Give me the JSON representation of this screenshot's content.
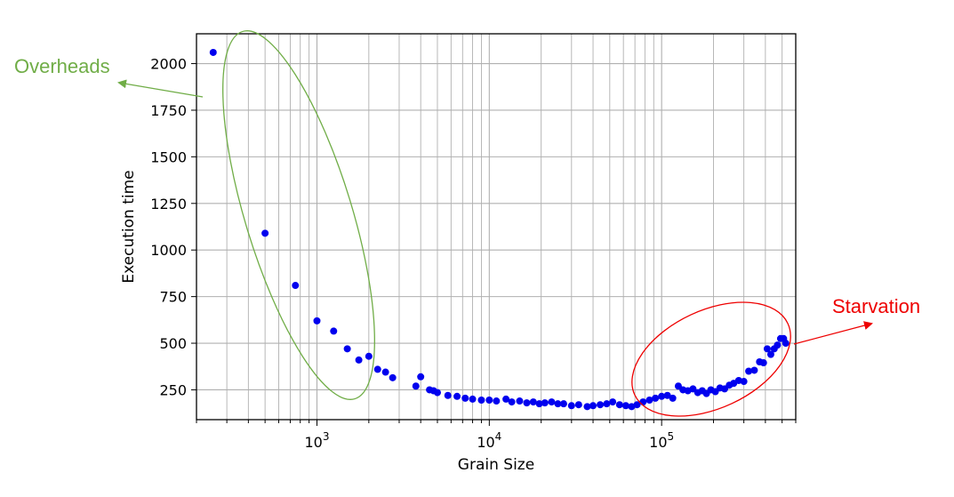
{
  "chart_data": {
    "type": "scatter",
    "xlabel": "Grain Size",
    "ylabel": "Execution time",
    "xscale": "log",
    "xlim": [
      200,
      600000
    ],
    "ylim": [
      90,
      2160
    ],
    "grid": true,
    "x_ticks": [
      {
        "base": "10",
        "exp": "3",
        "value": 1000
      },
      {
        "base": "10",
        "exp": "4",
        "value": 10000
      },
      {
        "base": "10",
        "exp": "5",
        "value": 100000
      }
    ],
    "y_ticks": [
      "250",
      "500",
      "750",
      "1000",
      "1250",
      "1500",
      "1750",
      "2000"
    ],
    "point_color": "#0000ee",
    "series": [
      {
        "points": [
          [
            250,
            2060
          ],
          [
            500,
            1090
          ],
          [
            750,
            810
          ],
          [
            1000,
            620
          ],
          [
            1250,
            565
          ],
          [
            1500,
            470
          ],
          [
            1750,
            410
          ],
          [
            2000,
            430
          ],
          [
            2250,
            360
          ],
          [
            2500,
            345
          ],
          [
            2750,
            315
          ],
          [
            3750,
            270
          ],
          [
            4000,
            320
          ],
          [
            4500,
            250
          ],
          [
            4750,
            245
          ],
          [
            5000,
            235
          ],
          [
            5750,
            220
          ],
          [
            6500,
            215
          ],
          [
            7250,
            205
          ],
          [
            8000,
            200
          ],
          [
            9000,
            195
          ],
          [
            10000,
            195
          ],
          [
            11000,
            190
          ],
          [
            12500,
            200
          ],
          [
            13500,
            185
          ],
          [
            15000,
            190
          ],
          [
            16500,
            180
          ],
          [
            18000,
            185
          ],
          [
            19500,
            175
          ],
          [
            21000,
            180
          ],
          [
            23000,
            185
          ],
          [
            25000,
            175
          ],
          [
            27000,
            175
          ],
          [
            30000,
            165
          ],
          [
            33000,
            170
          ],
          [
            37000,
            160
          ],
          [
            40000,
            165
          ],
          [
            44000,
            170
          ],
          [
            48000,
            175
          ],
          [
            52000,
            185
          ],
          [
            57000,
            170
          ],
          [
            62000,
            165
          ],
          [
            67000,
            160
          ],
          [
            72000,
            170
          ],
          [
            78000,
            185
          ],
          [
            85000,
            195
          ],
          [
            92000,
            205
          ],
          [
            100000,
            215
          ],
          [
            108000,
            220
          ],
          [
            116000,
            205
          ],
          [
            125000,
            270
          ],
          [
            133000,
            250
          ],
          [
            142000,
            245
          ],
          [
            152000,
            255
          ],
          [
            162000,
            235
          ],
          [
            172000,
            245
          ],
          [
            182000,
            230
          ],
          [
            193000,
            250
          ],
          [
            205000,
            240
          ],
          [
            218000,
            260
          ],
          [
            232000,
            255
          ],
          [
            247000,
            275
          ],
          [
            262000,
            285
          ],
          [
            280000,
            300
          ],
          [
            300000,
            295
          ],
          [
            320000,
            350
          ],
          [
            345000,
            355
          ],
          [
            370000,
            400
          ],
          [
            390000,
            395
          ],
          [
            410000,
            470
          ],
          [
            430000,
            440
          ],
          [
            450000,
            470
          ],
          [
            470000,
            490
          ],
          [
            490000,
            525
          ],
          [
            510000,
            525
          ],
          [
            525000,
            500
          ]
        ]
      }
    ],
    "annotations": [
      {
        "text": "Overheads",
        "color": "#70ad47"
      },
      {
        "text": "Starvation",
        "color": "#ee0000"
      }
    ]
  }
}
